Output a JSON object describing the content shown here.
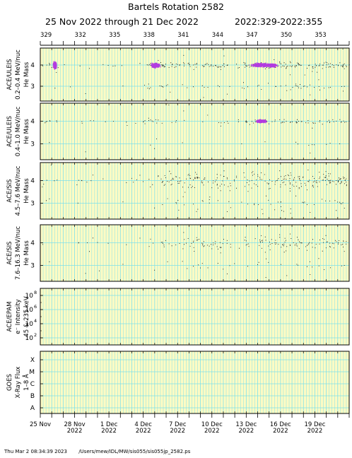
{
  "header": {
    "title": "Bartels Rotation 2582",
    "date_range": "25 Nov 2022 through 21 Dec 2022",
    "doy_range": "2022:329-2022:355"
  },
  "footer": {
    "timestamp": "Thu Mar  2 08:34:39 2023",
    "path": "/Users/mew/IDL/MW/sis055/sis055jp_2582.ps"
  },
  "colors": {
    "shading": "#fdfbc4",
    "gridline": "#7de0ea",
    "axis": "#000000",
    "points": "#000000",
    "density": "#b23be0"
  },
  "chart_data": {
    "type": "scatter",
    "x_range": [
      "2022-11-25",
      "2022-12-22"
    ],
    "top_axis_ticks": [
      "329",
      "332",
      "335",
      "338",
      "341",
      "344",
      "347",
      "350",
      "353"
    ],
    "bottom_axis_ticks": [
      {
        "day": "25 Nov",
        "year": ""
      },
      {
        "day": "28 Nov",
        "year": "2022"
      },
      {
        "day": "1 Dec",
        "year": "2022"
      },
      {
        "day": "4 Dec",
        "year": "2022"
      },
      {
        "day": "7 Dec",
        "year": "2022"
      },
      {
        "day": "10 Dec",
        "year": "2022"
      },
      {
        "day": "13 Dec",
        "year": "2022"
      },
      {
        "day": "16 Dec",
        "year": "2022"
      },
      {
        "day": "19 Dec",
        "year": "2022"
      }
    ],
    "panels": [
      {
        "instrument": "ACE/ULEIS",
        "energy": "0.2–0.4 MeV/nuc",
        "quantity": "He Mass",
        "y_ticks": [
          "3",
          "4"
        ],
        "ylim": [
          2.3,
          4.8
        ],
        "bands": [
          {
            "center": 4.0,
            "spread": 0.08,
            "density": 0.55
          },
          {
            "center": 3.0,
            "spread": 0.08,
            "density": 0.12
          }
        ],
        "activity": [
          [
            0,
            0.5
          ],
          [
            0.45,
            0.5
          ],
          [
            0.7,
            1.5
          ],
          [
            0.85,
            2.5
          ],
          [
            0.88,
            5.0
          ],
          [
            0.92,
            2.2
          ],
          [
            0.97,
            1.0
          ],
          [
            0.99,
            3.0
          ],
          [
            1.03,
            0.2
          ],
          [
            1.1,
            0.2
          ],
          [
            1.15,
            0.8
          ],
          [
            1.2,
            1.5
          ],
          [
            1.23,
            6.0
          ],
          [
            1.27,
            1.5
          ],
          [
            1.3,
            0.6
          ],
          [
            1.6,
            0.6
          ],
          [
            1.63,
            1.0
          ],
          [
            1.66,
            0.8
          ],
          [
            1.69,
            2.0
          ],
          [
            1.75,
            0.8
          ],
          [
            2.0,
            0.4
          ],
          [
            2.3,
            0.6
          ],
          [
            2.5,
            0.5
          ],
          [
            3.0,
            0.3
          ],
          [
            3.5,
            0.3
          ],
          [
            4.0,
            0.3
          ],
          [
            4.5,
            0.6
          ],
          [
            4.9,
            1.2
          ],
          [
            5.3,
            0.8
          ],
          [
            5.7,
            0.6
          ],
          [
            6.0,
            0.4
          ],
          [
            6.5,
            0.5
          ],
          [
            7.0,
            0.4
          ],
          [
            7.5,
            0.4
          ],
          [
            8.0,
            0.3
          ],
          [
            8.5,
            0.3
          ],
          [
            9.0,
            0.6
          ],
          [
            9.2,
            2.0
          ],
          [
            9.5,
            3.5
          ],
          [
            10.0,
            4.0
          ],
          [
            10.8,
            3.0
          ],
          [
            11.2,
            2.5
          ],
          [
            11.8,
            2.6
          ],
          [
            12.3,
            2.6
          ],
          [
            12.8,
            2.2
          ],
          [
            13.2,
            2.4
          ],
          [
            13.8,
            2.2
          ],
          [
            14.5,
            2.0
          ],
          [
            15.2,
            1.8
          ],
          [
            16.0,
            1.8
          ],
          [
            16.8,
            1.6
          ],
          [
            17.5,
            1.6
          ],
          [
            18.0,
            2.0
          ],
          [
            18.3,
            2.5
          ],
          [
            18.6,
            4.0
          ],
          [
            19.0,
            5.0
          ],
          [
            19.5,
            5.0
          ],
          [
            20.0,
            4.5
          ],
          [
            21.0,
            4.0
          ],
          [
            22.0,
            3.5
          ]
        ],
        "density_patches": [
          {
            "x": 1.25,
            "y": 4.0,
            "dx": 0.2,
            "dy": 0.18
          },
          {
            "x": 10.05,
            "y": 4.0,
            "dx": 0.5,
            "dy": 0.12
          },
          {
            "x": 19.2,
            "y": 4.02,
            "dx": 1.0,
            "dy": 0.1
          },
          {
            "x": 20.2,
            "y": 4.0,
            "dx": 0.6,
            "dy": 0.09
          }
        ]
      },
      {
        "instrument": "ACE/ULEIS",
        "energy": "0.4–1.0 MeV/nuc",
        "quantity": "He Mass",
        "y_ticks": [
          "3",
          "4"
        ],
        "ylim": [
          2.3,
          4.8
        ],
        "bands": [
          {
            "center": 4.0,
            "spread": 0.07,
            "density": 0.45
          },
          {
            "center": 3.0,
            "spread": 0.07,
            "density": 0.1
          }
        ],
        "activity": [
          [
            0,
            0.3
          ],
          [
            0.8,
            1.5
          ],
          [
            0.95,
            0.5
          ],
          [
            1.1,
            0.5
          ],
          [
            1.3,
            2.0
          ],
          [
            1.5,
            0.3
          ],
          [
            3.0,
            0.2
          ],
          [
            4.0,
            0.4
          ],
          [
            4.8,
            1.0
          ],
          [
            5.5,
            0.6
          ],
          [
            6.5,
            0.4
          ],
          [
            8.0,
            0.3
          ],
          [
            9.5,
            1.5
          ],
          [
            10.1,
            2.5
          ],
          [
            10.7,
            1.0
          ],
          [
            11.5,
            1.3
          ],
          [
            12.5,
            1.2
          ],
          [
            13.3,
            1.0
          ],
          [
            14.0,
            0.9
          ],
          [
            15.0,
            0.7
          ],
          [
            16.0,
            0.8
          ],
          [
            17.0,
            0.8
          ],
          [
            18.0,
            1.2
          ],
          [
            18.5,
            3.5
          ],
          [
            19.5,
            3.0
          ],
          [
            20.5,
            2.6
          ],
          [
            22.0,
            2.2
          ]
        ],
        "density_patches": [
          {
            "x": 19.3,
            "y": 4.02,
            "dx": 0.6,
            "dy": 0.08
          }
        ]
      },
      {
        "instrument": "ACE/SIS",
        "energy": "4.5–7.6 MeV/nuc",
        "quantity": "He Mass",
        "y_ticks": [
          "3",
          "4"
        ],
        "ylim": [
          2.3,
          4.8
        ],
        "bands": [
          {
            "center": 4.0,
            "spread": 0.22,
            "density": 0.8
          },
          {
            "center": 3.0,
            "spread": 0.22,
            "density": 0.2
          }
        ],
        "activity": [
          [
            0,
            0.8
          ],
          [
            1.0,
            1.0
          ],
          [
            2.0,
            1.2
          ],
          [
            3.0,
            0.8
          ],
          [
            4.0,
            0.8
          ],
          [
            5.0,
            0.6
          ],
          [
            6.0,
            0.5
          ],
          [
            7.0,
            0.5
          ],
          [
            8.0,
            0.6
          ],
          [
            9.0,
            0.5
          ],
          [
            9.8,
            1.0
          ],
          [
            10.5,
            1.8
          ],
          [
            11.5,
            2.2
          ],
          [
            12.5,
            2.6
          ],
          [
            13.3,
            3.0
          ],
          [
            13.8,
            4.5
          ],
          [
            14.3,
            3.0
          ],
          [
            15.0,
            2.0
          ],
          [
            15.8,
            2.8
          ],
          [
            16.5,
            1.5
          ],
          [
            17.3,
            1.2
          ],
          [
            18.0,
            2.0
          ],
          [
            18.5,
            4.0
          ],
          [
            19.2,
            5.0
          ],
          [
            20.0,
            5.0
          ],
          [
            21.0,
            4.2
          ],
          [
            22.0,
            4.0
          ]
        ],
        "density_patches": []
      },
      {
        "instrument": "ACE/SIS",
        "energy": "7.6–16.3 MeV/nuc",
        "quantity": "He Mass",
        "y_ticks": [
          "3",
          "4"
        ],
        "ylim": [
          2.3,
          4.8
        ],
        "bands": [
          {
            "center": 4.0,
            "spread": 0.2,
            "density": 0.75
          },
          {
            "center": 3.0,
            "spread": 0.2,
            "density": 0.15
          }
        ],
        "activity": [
          [
            0,
            0.4
          ],
          [
            1.0,
            0.5
          ],
          [
            2.0,
            0.6
          ],
          [
            3.0,
            0.4
          ],
          [
            4.0,
            0.5
          ],
          [
            5.0,
            0.3
          ],
          [
            6.0,
            0.3
          ],
          [
            7.0,
            0.3
          ],
          [
            8.0,
            0.3
          ],
          [
            9.0,
            0.3
          ],
          [
            10.0,
            0.9
          ],
          [
            11.0,
            1.2
          ],
          [
            12.0,
            1.5
          ],
          [
            13.0,
            1.5
          ],
          [
            13.8,
            3.5
          ],
          [
            14.3,
            2.0
          ],
          [
            15.0,
            1.2
          ],
          [
            15.8,
            2.0
          ],
          [
            16.5,
            1.0
          ],
          [
            17.5,
            0.8
          ],
          [
            18.0,
            1.5
          ],
          [
            18.5,
            3.0
          ],
          [
            19.3,
            4.2
          ],
          [
            20.0,
            4.0
          ],
          [
            21.0,
            3.0
          ],
          [
            22.0,
            2.8
          ]
        ],
        "density_patches": []
      },
      {
        "instrument": "ACE/EPAM",
        "quantity": "e⁻ Intensity",
        "energy": "45 & 235 keV",
        "log_scale": true,
        "ylim": [
          10,
          1000000000
        ],
        "y_ticks": [
          {
            "base": "10",
            "exp": "2"
          },
          {
            "base": "10",
            "exp": "4"
          },
          {
            "base": "10",
            "exp": "6"
          },
          {
            "base": "10",
            "exp": "8"
          }
        ],
        "series": []
      },
      {
        "instrument": "GOES",
        "quantity": "X-Ray Flux",
        "energy": "1–8 Å",
        "y_ticks": [
          "A",
          "B",
          "C",
          "M",
          "X"
        ],
        "series": []
      }
    ]
  }
}
